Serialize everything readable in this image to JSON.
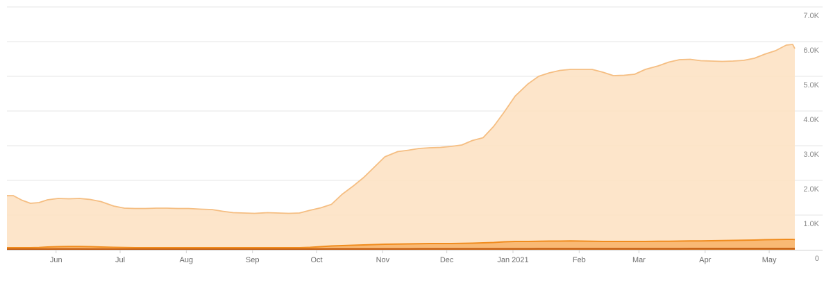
{
  "chart_data": {
    "type": "area",
    "title": "",
    "xlabel": "",
    "ylabel": "",
    "x_ticks": [
      "Jun",
      "Jul",
      "Aug",
      "Sep",
      "Oct",
      "Nov",
      "Dec",
      "Jan 2021",
      "Feb",
      "Mar",
      "Apr",
      "May"
    ],
    "y_ticks": [
      "0",
      "1.0K",
      "2.0K",
      "3.0K",
      "4.0K",
      "5.0K",
      "6.0K",
      "7.0K"
    ],
    "ylim": [
      0,
      7000
    ],
    "xlim": [
      "2020-05-09",
      "2021-05-13"
    ],
    "grid": true,
    "legend": "none",
    "x": [
      "2020-05-09",
      "2020-05-12",
      "2020-05-16",
      "2020-05-20",
      "2020-05-24",
      "2020-05-28",
      "2020-06-02",
      "2020-06-07",
      "2020-06-12",
      "2020-06-17",
      "2020-06-22",
      "2020-06-28",
      "2020-07-03",
      "2020-07-08",
      "2020-07-13",
      "2020-07-18",
      "2020-07-23",
      "2020-07-28",
      "2020-08-02",
      "2020-08-08",
      "2020-08-13",
      "2020-08-18",
      "2020-08-23",
      "2020-08-28",
      "2020-09-02",
      "2020-09-08",
      "2020-09-13",
      "2020-09-18",
      "2020-09-23",
      "2020-09-28",
      "2020-10-03",
      "2020-10-08",
      "2020-10-13",
      "2020-10-18",
      "2020-10-23",
      "2020-10-28",
      "2020-11-02",
      "2020-11-08",
      "2020-11-13",
      "2020-11-18",
      "2020-11-23",
      "2020-11-28",
      "2020-12-03",
      "2020-12-08",
      "2020-12-13",
      "2020-12-18",
      "2020-12-23",
      "2020-12-28",
      "2021-01-02",
      "2021-01-08",
      "2021-01-13",
      "2021-01-18",
      "2021-01-23",
      "2021-01-28",
      "2021-02-02",
      "2021-02-07",
      "2021-02-12",
      "2021-02-17",
      "2021-02-22",
      "2021-02-27",
      "2021-03-04",
      "2021-03-10",
      "2021-03-15",
      "2021-03-20",
      "2021-03-25",
      "2021-03-30",
      "2021-04-04",
      "2021-04-09",
      "2021-04-14",
      "2021-04-19",
      "2021-04-24",
      "2021-04-29",
      "2021-05-04",
      "2021-05-09",
      "2021-05-12",
      "2021-05-13"
    ],
    "series": [
      {
        "color": "#f5be82",
        "fill": "#fde1c1",
        "values": [
          1560,
          1560,
          1430,
          1340,
          1360,
          1440,
          1480,
          1470,
          1480,
          1450,
          1390,
          1260,
          1200,
          1190,
          1190,
          1200,
          1200,
          1190,
          1190,
          1170,
          1160,
          1110,
          1070,
          1060,
          1050,
          1070,
          1060,
          1050,
          1060,
          1140,
          1210,
          1310,
          1600,
          1830,
          2080,
          2380,
          2680,
          2830,
          2870,
          2920,
          2940,
          2950,
          2980,
          3020,
          3150,
          3230,
          3560,
          3980,
          4430,
          4780,
          5000,
          5100,
          5170,
          5200,
          5200,
          5200,
          5120,
          5020,
          5030,
          5060,
          5200,
          5300,
          5410,
          5480,
          5490,
          5450,
          5440,
          5430,
          5440,
          5460,
          5520,
          5640,
          5740,
          5900,
          5920,
          5800
        ]
      },
      {
        "color": "#f08c1e",
        "fill": "#f8b46a",
        "values": [
          60,
          60,
          60,
          60,
          65,
          80,
          90,
          95,
          95,
          90,
          80,
          70,
          65,
          60,
          60,
          60,
          60,
          60,
          60,
          60,
          60,
          60,
          60,
          60,
          60,
          60,
          60,
          60,
          60,
          70,
          90,
          110,
          120,
          130,
          140,
          150,
          160,
          165,
          170,
          175,
          180,
          180,
          180,
          185,
          190,
          200,
          210,
          230,
          240,
          240,
          245,
          250,
          250,
          255,
          250,
          245,
          240,
          240,
          240,
          240,
          240,
          245,
          245,
          250,
          255,
          255,
          260,
          265,
          270,
          275,
          280,
          290,
          295,
          300,
          300,
          295
        ]
      },
      {
        "color": "#c2590c",
        "fill": "#d77a24",
        "values": [
          18,
          18,
          18,
          18,
          18,
          20,
          22,
          22,
          22,
          20,
          20,
          18,
          18,
          18,
          18,
          18,
          18,
          18,
          18,
          18,
          18,
          18,
          18,
          18,
          18,
          18,
          18,
          18,
          18,
          20,
          22,
          24,
          24,
          25,
          25,
          26,
          26,
          26,
          26,
          27,
          27,
          27,
          27,
          27,
          28,
          28,
          28,
          29,
          29,
          29,
          30,
          30,
          30,
          30,
          30,
          30,
          30,
          30,
          30,
          30,
          30,
          30,
          30,
          30,
          31,
          31,
          31,
          31,
          31,
          32,
          32,
          32,
          32,
          33,
          33,
          33
        ]
      }
    ]
  }
}
